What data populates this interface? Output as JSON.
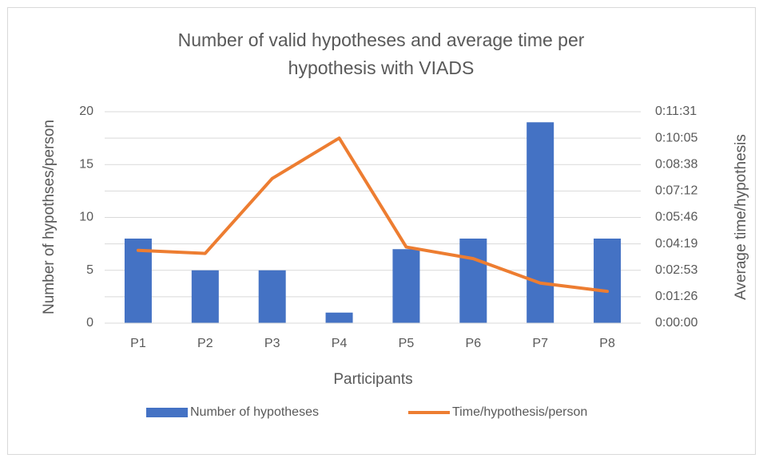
{
  "chart_data": {
    "type": "bar_line",
    "title": [
      "Number of valid hypotheses and average time per",
      "hypothesis with VIADS"
    ],
    "xlabel": "Participants",
    "ylabel": "Number of hypothses/person",
    "y2label": "Average time/hypothesis",
    "categories": [
      "P1",
      "P2",
      "P3",
      "P4",
      "P5",
      "P6",
      "P7",
      "P8"
    ],
    "series": [
      {
        "name": "Number of hypotheses",
        "type": "bar",
        "color": "#4472c4",
        "values": [
          8,
          5,
          5,
          1,
          7,
          8,
          19,
          8
        ]
      },
      {
        "name": "Time/hypothesis/person",
        "type": "line",
        "axis": "y2",
        "color": "#ed7d31",
        "values": [
          238,
          228,
          473,
          605,
          249,
          211,
          131,
          104
        ]
      }
    ],
    "ylim": [
      0,
      20
    ],
    "yticks": [
      0,
      5,
      10,
      15,
      20
    ],
    "y2lim": [
      0,
      691.2
    ],
    "y2ticks": [
      {
        "value": 0,
        "label": "0:00:00"
      },
      {
        "value": 86.4,
        "label": "0:01:26"
      },
      {
        "value": 172.8,
        "label": "0:02:53"
      },
      {
        "value": 259.2,
        "label": "0:04:19"
      },
      {
        "value": 345.6,
        "label": "0:05:46"
      },
      {
        "value": 432,
        "label": "0:07:12"
      },
      {
        "value": 518.4,
        "label": "0:08:38"
      },
      {
        "value": 604.8,
        "label": "0:10:05"
      },
      {
        "value": 691.2,
        "label": "0:11:31"
      }
    ],
    "grid": true,
    "legend": "bottom"
  }
}
